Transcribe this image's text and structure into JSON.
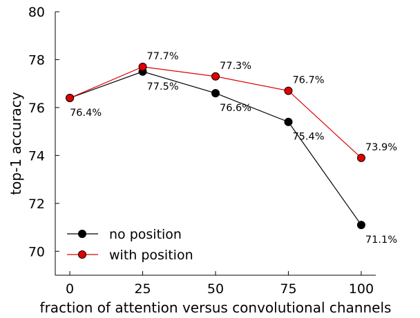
{
  "chart_data": {
    "type": "line",
    "xlabel": "fraction of attention versus convolutional channels",
    "ylabel": "top-1 accuracy",
    "x": [
      0,
      25,
      50,
      75,
      100
    ],
    "xlim": [
      -5,
      105
    ],
    "ylim": [
      69,
      80
    ],
    "xticks": [
      "0",
      "25",
      "50",
      "75",
      "100"
    ],
    "yticks": [
      "70",
      "72",
      "74",
      "76",
      "78",
      "80"
    ],
    "grid": false,
    "legend_position": "bottom-left",
    "series": [
      {
        "name": "no position",
        "color": "#000000",
        "values": [
          76.4,
          77.5,
          76.6,
          75.4,
          71.1
        ],
        "labels": [
          "76.4%",
          "77.5%",
          "76.6%",
          "75.4%",
          "71.1%"
        ]
      },
      {
        "name": "with position",
        "color": "#e00000",
        "values": [
          76.4,
          77.7,
          77.3,
          76.7,
          73.9
        ],
        "labels": [
          "",
          "77.7%",
          "77.3%",
          "76.7%",
          "73.9%"
        ]
      }
    ]
  }
}
